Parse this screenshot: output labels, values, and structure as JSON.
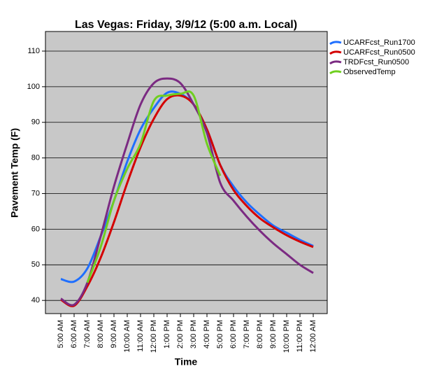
{
  "chart_data": {
    "type": "line",
    "title": "Las Vegas: Friday, 3/9/12 (5:00 a.m. Local)",
    "x_label": "Time",
    "y_label": "Pavement Temp (F)",
    "categories": [
      "5:00 AM",
      "6:00 AM",
      "7:00 AM",
      "8:00 AM",
      "9:00 AM",
      "10:00 AM",
      "11:00 AM",
      "12:00 PM",
      "1:00 PM",
      "2:00 PM",
      "3:00 PM",
      "4:00 PM",
      "5:00 PM",
      "6:00 PM",
      "7:00 PM",
      "8:00 PM",
      "9:00 PM",
      "10:00 PM",
      "11:00 PM",
      "12:00 AM"
    ],
    "series": [
      {
        "name": "UCARFcst_Run1700",
        "color": "#1f6fff",
        "values": [
          46,
          45.3,
          49,
          58,
          68,
          79,
          88,
          94,
          98.3,
          98,
          95,
          88,
          78,
          72,
          67.5,
          64,
          61,
          59,
          57,
          55.3
        ]
      },
      {
        "name": "UCARFcst_Run0500",
        "color": "#d40000",
        "values": [
          40.2,
          38.5,
          44,
          52,
          62,
          73,
          83,
          91,
          96.5,
          97.5,
          95,
          88,
          78,
          71,
          66.5,
          63,
          60.5,
          58.3,
          56.5,
          55
        ]
      },
      {
        "name": "TRDFcst_Run0500",
        "color": "#7b2a82",
        "values": [
          40.5,
          38.8,
          45,
          58,
          72,
          84,
          95,
          101,
          102.3,
          101,
          95,
          87,
          73,
          68,
          63.5,
          59.5,
          56,
          53,
          50,
          47.7
        ]
      },
      {
        "name": "ObservedTemp",
        "color": "#6fcf1f",
        "values": [
          null,
          null,
          45,
          55,
          68,
          77,
          84,
          96,
          97.5,
          98,
          97.5,
          84,
          75,
          null,
          null,
          null,
          null,
          null,
          null,
          null
        ]
      }
    ],
    "ylim": [
      36.3,
      115.5
    ],
    "yticks": [
      40,
      50,
      60,
      70,
      80,
      90,
      100,
      110
    ],
    "grid": true
  }
}
